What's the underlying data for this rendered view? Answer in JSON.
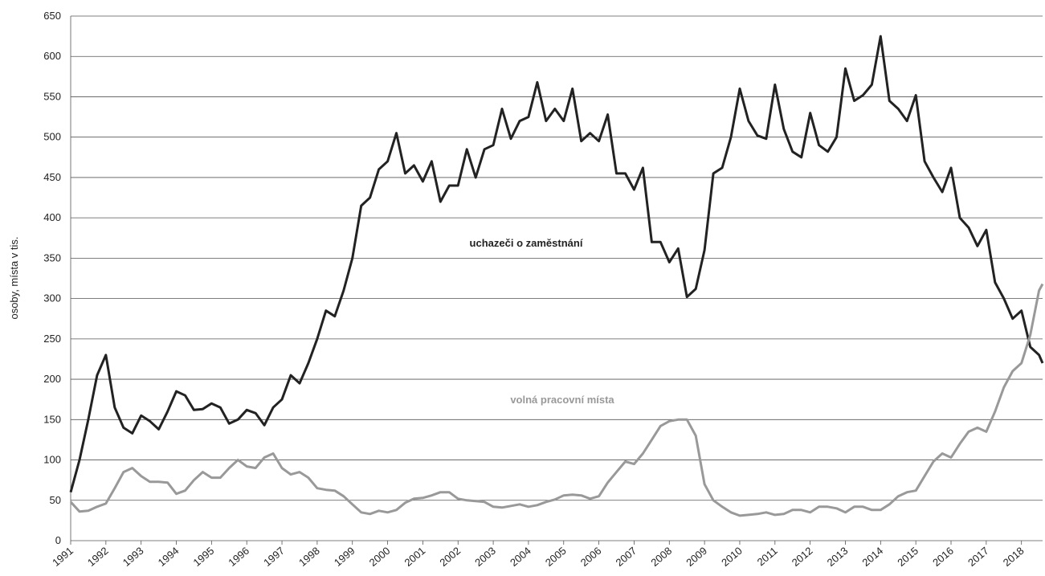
{
  "chart_data": {
    "type": "line",
    "ylabel": "osoby, místa v tis.",
    "annotations": [
      "uchazeči o zaměstnání",
      "volná pracovní místa"
    ],
    "x": [
      1991,
      1991.25,
      1991.5,
      1991.75,
      1992,
      1992.25,
      1992.5,
      1992.75,
      1993,
      1993.25,
      1993.5,
      1993.75,
      1994,
      1994.25,
      1994.5,
      1994.75,
      1995,
      1995.25,
      1995.5,
      1995.75,
      1996,
      1996.25,
      1996.5,
      1996.75,
      1997,
      1997.25,
      1997.5,
      1997.75,
      1998,
      1998.25,
      1998.5,
      1998.75,
      1999,
      1999.25,
      1999.5,
      1999.75,
      2000,
      2000.25,
      2000.5,
      2000.75,
      2001,
      2001.25,
      2001.5,
      2001.75,
      2002,
      2002.25,
      2002.5,
      2002.75,
      2003,
      2003.25,
      2003.5,
      2003.75,
      2004,
      2004.25,
      2004.5,
      2004.75,
      2005,
      2005.25,
      2005.5,
      2005.75,
      2006,
      2006.25,
      2006.5,
      2006.75,
      2007,
      2007.25,
      2007.5,
      2007.75,
      2008,
      2008.25,
      2008.5,
      2008.75,
      2009,
      2009.25,
      2009.5,
      2009.75,
      2010,
      2010.25,
      2010.5,
      2010.75,
      2011,
      2011.25,
      2011.5,
      2011.75,
      2012,
      2012.25,
      2012.5,
      2012.75,
      2013,
      2013.25,
      2013.5,
      2013.75,
      2014,
      2014.25,
      2014.5,
      2014.75,
      2015,
      2015.25,
      2015.5,
      2015.75,
      2016,
      2016.25,
      2016.5,
      2016.75,
      2017,
      2017.25,
      2017.5,
      2017.75,
      2018,
      2018.25,
      2018.5,
      2018.6
    ],
    "series": [
      {
        "name": "uchazeči o zaměstnání",
        "color": "#222222",
        "values": [
          60,
          100,
          150,
          205,
          230,
          165,
          140,
          133,
          155,
          148,
          138,
          160,
          185,
          180,
          162,
          163,
          170,
          165,
          145,
          150,
          162,
          158,
          143,
          165,
          175,
          205,
          195,
          220,
          250,
          285,
          278,
          310,
          350,
          415,
          425,
          460,
          470,
          505,
          455,
          465,
          445,
          470,
          420,
          440,
          440,
          485,
          450,
          485,
          490,
          535,
          498,
          520,
          525,
          568,
          520,
          535,
          520,
          560,
          495,
          505,
          495,
          528,
          455,
          455,
          435,
          462,
          370,
          370,
          345,
          362,
          302,
          312,
          360,
          455,
          462,
          500,
          560,
          520,
          502,
          498,
          565,
          510,
          482,
          475,
          530,
          490,
          482,
          500,
          585,
          545,
          552,
          565,
          625,
          545,
          535,
          520,
          552,
          470,
          450,
          432,
          462,
          400,
          388,
          365,
          385,
          320,
          300,
          275,
          285,
          240,
          230,
          220
        ]
      },
      {
        "name": "volná pracovní místa",
        "color": "#999999",
        "values": [
          48,
          36,
          37,
          42,
          46,
          65,
          85,
          90,
          80,
          73,
          73,
          72,
          58,
          62,
          75,
          85,
          78,
          78,
          90,
          100,
          92,
          90,
          103,
          108,
          90,
          82,
          85,
          78,
          65,
          63,
          62,
          55,
          45,
          35,
          33,
          37,
          35,
          38,
          47,
          52,
          53,
          56,
          60,
          60,
          52,
          50,
          49,
          48,
          42,
          41,
          43,
          45,
          42,
          44,
          48,
          51,
          56,
          57,
          56,
          52,
          55,
          72,
          85,
          98,
          95,
          108,
          125,
          142,
          148,
          150,
          150,
          130,
          70,
          50,
          42,
          35,
          31,
          32,
          33,
          35,
          32,
          33,
          38,
          38,
          35,
          42,
          42,
          40,
          35,
          42,
          42,
          38,
          38,
          45,
          55,
          60,
          62,
          80,
          98,
          108,
          103,
          120,
          135,
          140,
          135,
          160,
          190,
          210,
          220,
          255,
          310,
          318
        ]
      }
    ],
    "xlim": [
      1991,
      2018.6
    ],
    "xticks": [
      1991,
      1992,
      1993,
      1994,
      1995,
      1996,
      1997,
      1998,
      1999,
      2000,
      2001,
      2002,
      2003,
      2004,
      2005,
      2006,
      2007,
      2008,
      2009,
      2010,
      2011,
      2012,
      2013,
      2014,
      2015,
      2016,
      2017,
      2018
    ],
    "ylim": [
      0,
      650
    ],
    "yticks": [
      0,
      50,
      100,
      150,
      200,
      250,
      300,
      350,
      400,
      450,
      500,
      550,
      600,
      650
    ],
    "grid": true
  }
}
